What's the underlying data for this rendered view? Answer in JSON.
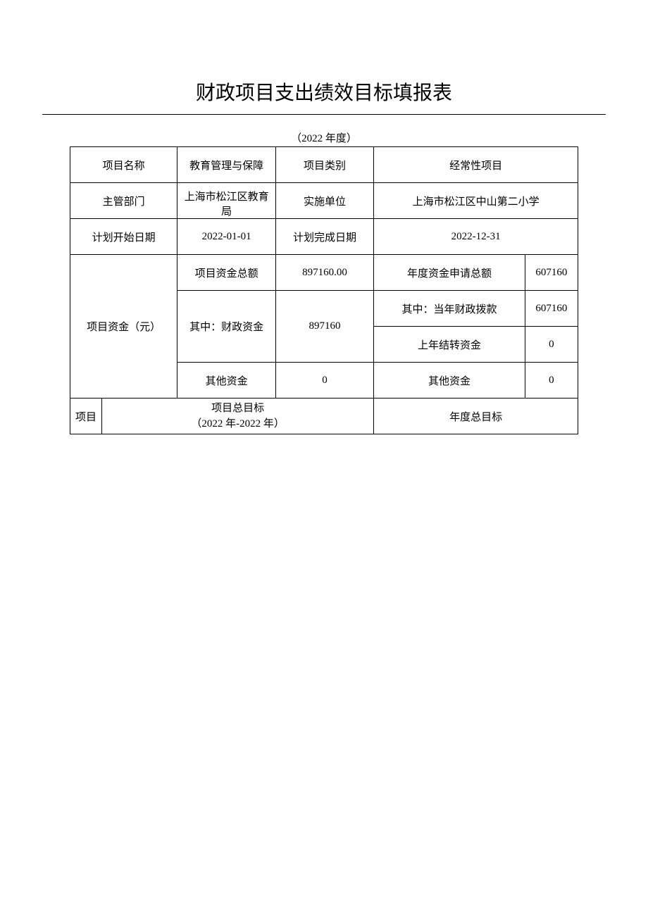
{
  "title": "财政项目支出绩效目标填报表",
  "subtitle": "（2022 年度）",
  "labels": {
    "project_name": "项目名称",
    "project_category": "项目类别",
    "supervisor_dept": "主管部门",
    "implement_unit": "实施单位",
    "plan_start": "计划开始日期",
    "plan_end": "计划完成日期",
    "project_funds": "项目资金（元）",
    "fund_total": "项目资金总额",
    "annual_apply_total": "年度资金申请总额",
    "fiscal_fund": "其中：财政资金",
    "current_year_fiscal": "其中：当年财政拨款",
    "carryover": "上年结转资金",
    "other_fund": "其他资金",
    "other_fund2": "其他资金",
    "project": "项目",
    "overall_goal_line1": "项目总目标",
    "overall_goal_line2": "（2022 年-2022 年）",
    "annual_goal": "年度总目标"
  },
  "values": {
    "project_name": "教育管理与保障",
    "project_category": "经常性项目",
    "supervisor_dept": "上海市松江区教育局",
    "implement_unit": "上海市松江区中山第二小学",
    "plan_start": "2022-01-01",
    "plan_end": "2022-12-31",
    "fund_total": "897160.00",
    "annual_apply_total": "607160",
    "fiscal_fund": "897160",
    "current_year_fiscal": "607160",
    "carryover": "0",
    "other_fund": "0",
    "other_fund2": "0"
  }
}
